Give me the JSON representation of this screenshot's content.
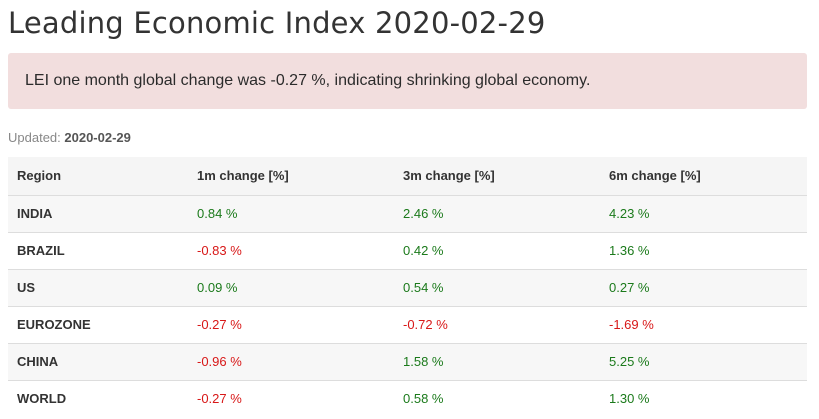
{
  "page": {
    "title": "Leading Economic Index 2020-02-29",
    "alert": "LEI one month global change was -0.27 %, indicating shrinking global economy.",
    "updated_label": "Updated:",
    "updated_value": "2020-02-29"
  },
  "colors": {
    "positive": "#1b7a1b",
    "negative": "#d81818",
    "alert_bg": "#f2dede"
  },
  "table": {
    "headers": [
      "Region",
      "1m change [%]",
      "3m change [%]",
      "6m change [%]"
    ],
    "rows": [
      [
        "INDIA",
        "0.84 %",
        "2.46 %",
        "4.23 %"
      ],
      [
        "BRAZIL",
        "-0.83 %",
        "0.42 %",
        "1.36 %"
      ],
      [
        "US",
        "0.09 %",
        "0.54 %",
        "0.27 %"
      ],
      [
        "EUROZONE",
        "-0.27 %",
        "-0.72 %",
        "-1.69 %"
      ],
      [
        "CHINA",
        "-0.96 %",
        "1.58 %",
        "5.25 %"
      ],
      [
        "WORLD",
        "-0.27 %",
        "0.58 %",
        "1.30 %"
      ]
    ]
  }
}
